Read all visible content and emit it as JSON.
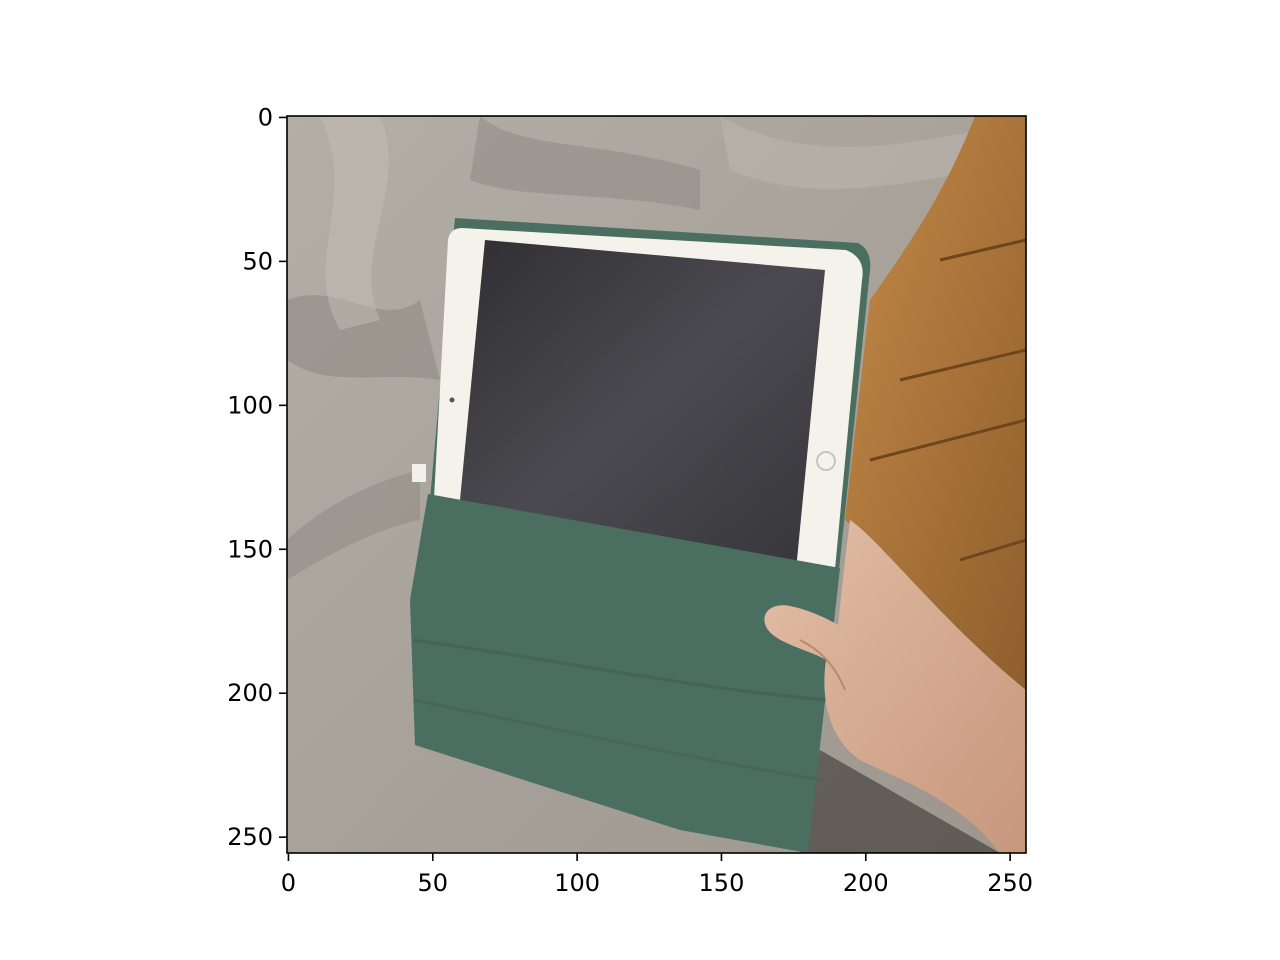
{
  "figure": {
    "image_kind": "photo",
    "x_ticks": [
      "0",
      "50",
      "100",
      "150",
      "200",
      "250"
    ],
    "y_ticks": [
      "0",
      "50",
      "100",
      "150",
      "200",
      "250"
    ],
    "x_tick_values": [
      0,
      50,
      100,
      150,
      200,
      250
    ],
    "y_tick_values": [
      0,
      50,
      100,
      150,
      200,
      250
    ],
    "extent": [
      256,
      256
    ],
    "colors": {
      "bedding": "#a8a29b",
      "bedding_shadow": "#8c8781",
      "floor": "#b07a3e",
      "floor_dark": "#8a5a28",
      "case": "#4a6e60",
      "case_dark": "#3f6155",
      "bezel": "#f4f2ea",
      "screen": "#3a3a3e",
      "skin": "#d9b39a",
      "axis": "#000000"
    }
  }
}
